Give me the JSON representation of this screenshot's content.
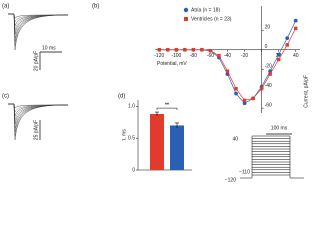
{
  "panels": {
    "a": "(a)",
    "b": "(b)",
    "c": "(c)",
    "d": "(d)"
  },
  "traces_a": {
    "time_scale": "10 ms",
    "current_scale": "20 pA/pF"
  },
  "traces_c": {
    "current_scale": "25 pA/pF"
  },
  "protocol": {
    "duration": "100 ms",
    "top": "40",
    "step": "−110",
    "holding": "−120"
  },
  "chart_data": [
    {
      "type": "line",
      "x": [
        -120,
        -110,
        -100,
        -90,
        -80,
        -70,
        -60,
        -50,
        -40,
        -30,
        -20,
        -10,
        0,
        10,
        20,
        30,
        40
      ],
      "series": [
        {
          "name": "Atria (n = 18)",
          "color": "#2b5fb3",
          "marker": "circle",
          "values": [
            0,
            0,
            0,
            0,
            0,
            0,
            -1,
            -8,
            -25,
            -45,
            -55,
            -50,
            -38,
            -22,
            -5,
            12,
            30
          ]
        },
        {
          "name": "Ventricles (n = 23)",
          "color": "#e23a2c",
          "marker": "square",
          "values": [
            0,
            0,
            0,
            0,
            0,
            0,
            -1,
            -6,
            -22,
            -40,
            -52,
            -50,
            -40,
            -25,
            -10,
            5,
            22
          ]
        }
      ],
      "xlim": [
        -125,
        45
      ],
      "ylim": [
        -65,
        45
      ],
      "xticks": [
        -120,
        -100,
        -80,
        -60,
        -40,
        -20,
        0,
        20,
        40
      ],
      "yticks": [
        -60,
        -40,
        -20,
        0,
        20
      ],
      "xlabel": "Potential, mV",
      "ylabel": "Current, pA/pF",
      "legend": "upper left"
    },
    {
      "type": "bar",
      "categories": [
        null,
        null
      ],
      "values": [
        0.88,
        0.7
      ],
      "errors": [
        0.03,
        0.04
      ],
      "colors": [
        "#e23a2c",
        "#2b5fb3"
      ],
      "ylim": [
        0,
        1.1
      ],
      "yticks": [
        0,
        0.5,
        {
          "value": 1,
          "label": "1.0"
        }
      ],
      "ylabel": "τ, ms",
      "annotation": "**"
    }
  ]
}
